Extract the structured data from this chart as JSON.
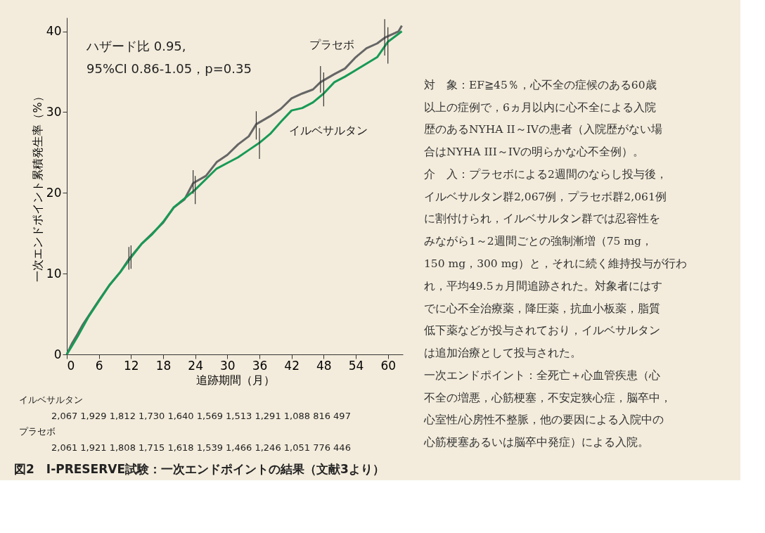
{
  "chart_data": [
    {
      "type": "line",
      "title": "図2　I-PRESERVE試験：一次エンドポイントの結果（文献3より）",
      "xlabel": "追跡期間（月）",
      "ylabel": "一次エンドポイント累積発生率（%）",
      "xlim": [
        0,
        62.8
      ],
      "xticks": [
        0,
        6,
        12,
        18,
        24,
        30,
        36,
        42,
        48,
        54,
        60
      ],
      "ylim": [
        0,
        41.7
      ],
      "yticks": [
        0,
        10,
        20,
        30,
        40
      ],
      "grid": false,
      "marker": "none",
      "line_style": "solid",
      "annotations": [
        "ハザード比 0.95,",
        "95%CI 0.86-1.05，p=0.35",
        "イルベサルタン",
        "2,067 1,929 1,812 1,730 1,640 1,569 1,513 1,291 1,088 816 497",
        "プラセボ",
        "2,061 1,921 1,808 1,715 1,618 1,539 1,466 1,246 1,051 776 446"
      ],
      "series": [
        {
          "name": "プラセボ",
          "color": "#666666",
          "x": [
            0,
            1,
            2,
            3,
            4,
            6,
            8,
            10,
            11.6,
            14,
            16,
            18,
            20,
            22,
            23.6,
            26,
            28,
            30,
            32,
            34,
            35.4,
            38,
            40,
            42,
            44,
            46,
            47.4,
            50,
            52,
            54,
            56,
            58,
            59.4,
            62,
            62.6
          ],
          "values": [
            0,
            1.4,
            2.5,
            3.7,
            4.7,
            6.7,
            8.6,
            10.2,
            11.8,
            13.7,
            15.0,
            16.3,
            18.2,
            19.2,
            21.2,
            22.1,
            23.8,
            24.7,
            26.0,
            27.0,
            28.5,
            29.5,
            30.4,
            31.7,
            32.3,
            32.8,
            33.7,
            34.7,
            35.4,
            36.8,
            37.9,
            38.5,
            39.2,
            40.0,
            40.7
          ],
          "errors": [
            null,
            null,
            null,
            null,
            null,
            null,
            null,
            null,
            [
              10.5,
              13.3
            ],
            null,
            null,
            null,
            null,
            null,
            [
              19.9,
              22.8
            ],
            null,
            null,
            null,
            null,
            null,
            [
              26.6,
              30.1
            ],
            null,
            null,
            null,
            null,
            null,
            [
              32.4,
              35.7
            ],
            null,
            null,
            null,
            null,
            null,
            [
              37.0,
              41.5
            ],
            null,
            null
          ]
        },
        {
          "name": "イルベサルタン",
          "color": "#179a55",
          "x": [
            0,
            1,
            2,
            3,
            4,
            6,
            8,
            10,
            12,
            14,
            16,
            18,
            20,
            22,
            24,
            26,
            28,
            30,
            32,
            34,
            36,
            38,
            40,
            42,
            44,
            46,
            48,
            50,
            52,
            54,
            56,
            58,
            60,
            62,
            62.6
          ],
          "values": [
            0,
            1.1,
            2.2,
            3.4,
            4.6,
            6.6,
            8.6,
            10.2,
            12.0,
            13.7,
            14.9,
            16.4,
            18.2,
            19.3,
            20.4,
            21.7,
            23.0,
            23.7,
            24.4,
            25.3,
            26.2,
            27.3,
            28.8,
            30.2,
            30.5,
            31.2,
            32.3,
            33.7,
            34.4,
            35.2,
            36.0,
            36.8,
            38.7,
            39.7,
            40.0
          ],
          "errors": [
            null,
            null,
            null,
            null,
            null,
            null,
            null,
            null,
            [
              10.6,
              13.5
            ],
            null,
            null,
            null,
            null,
            null,
            [
              18.6,
              22.1
            ],
            null,
            null,
            null,
            null,
            null,
            [
              24.2,
              28.0
            ],
            null,
            null,
            null,
            null,
            null,
            [
              30.7,
              34.9
            ],
            null,
            null,
            null,
            null,
            null,
            [
              36.0,
              40.5
            ],
            null,
            null
          ]
        }
      ]
    },
    {
      "type": "other",
      "annotations": [
        "対　象：EF≧45％，心不全の症候のある60歳",
        "以上の症例で，6ヵ月以内に心不全による入院",
        "歴のあるNYHA II～IVの患者（入院歴がない場",
        "合はNYHA III～IVの明らかな心不全例）。",
        "介　入：プラセボによる2週間のならし投与後，",
        "イルベサルタン群2,067例，プラセボ群2,061例",
        "に割付けられ，イルベサルタン群では忍容性を",
        "みながら1～2週間ごとの強制漸増（75 mg，",
        "150 mg，300 mg）と，それに続く維持投与が行わ",
        "れ，平均49.5ヵ月間追跡された。対象者にはす",
        "でに心不全治療薬，降圧薬，抗血小板薬，脂質",
        "低下薬などが投与されており，イルベサルタン",
        "は追加治療として投与された。",
        "一次エンドポイント：全死亡＋心血管疾患（心",
        "不全の増悪，心筋梗塞，不安定狭心症，脳卒中，",
        "心室性/心房性不整脈，他の要因による入院中の",
        "心筋梗塞あるいは脳卒中発症）による入院。"
      ]
    }
  ]
}
